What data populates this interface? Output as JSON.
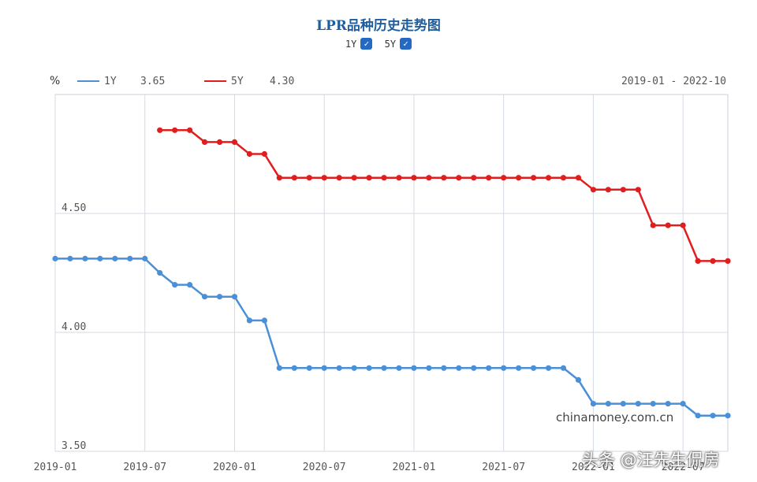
{
  "header": {
    "title": "LPR品种历史走势图",
    "toggle_1y": {
      "label": "1Y",
      "checked": true
    },
    "toggle_5y": {
      "label": "5Y",
      "checked": true
    }
  },
  "legend": {
    "unit": "%",
    "series": [
      {
        "name": "1Y",
        "value": "3.65",
        "color": "#4a90d9"
      },
      {
        "name": "5Y",
        "value": "4.30",
        "color": "#e01e1e"
      }
    ],
    "range": "2019-01 - 2022-10"
  },
  "source_text": "chinamoney.com.cn",
  "watermark": "头条 @汪先生侃房",
  "chart_data": {
    "type": "line",
    "x": [
      "2019-01",
      "2019-02",
      "2019-03",
      "2019-04",
      "2019-05",
      "2019-06",
      "2019-07",
      "2019-08",
      "2019-09",
      "2019-10",
      "2019-11",
      "2019-12",
      "2020-01",
      "2020-02",
      "2020-03",
      "2020-04",
      "2020-05",
      "2020-06",
      "2020-07",
      "2020-08",
      "2020-09",
      "2020-10",
      "2020-11",
      "2020-12",
      "2021-01",
      "2021-02",
      "2021-03",
      "2021-04",
      "2021-05",
      "2021-06",
      "2021-07",
      "2021-08",
      "2021-09",
      "2021-10",
      "2021-11",
      "2021-12",
      "2022-01",
      "2022-02",
      "2022-03",
      "2022-04",
      "2022-05",
      "2022-06",
      "2022-07",
      "2022-08",
      "2022-09",
      "2022-10"
    ],
    "x_ticks": [
      "2019-01",
      "2019-07",
      "2020-01",
      "2020-07",
      "2021-01",
      "2021-07",
      "2022-01",
      "2022-07"
    ],
    "y_ticks": [
      "3.50",
      "4.00",
      "4.50"
    ],
    "ylim": [
      3.5,
      5.0
    ],
    "series": [
      {
        "name": "1Y",
        "color": "#4a90d9",
        "values": [
          4.31,
          4.31,
          4.31,
          4.31,
          4.31,
          4.31,
          4.31,
          4.25,
          4.2,
          4.2,
          4.15,
          4.15,
          4.15,
          4.05,
          4.05,
          3.85,
          3.85,
          3.85,
          3.85,
          3.85,
          3.85,
          3.85,
          3.85,
          3.85,
          3.85,
          3.85,
          3.85,
          3.85,
          3.85,
          3.85,
          3.85,
          3.85,
          3.85,
          3.85,
          3.85,
          3.8,
          3.7,
          3.7,
          3.7,
          3.7,
          3.7,
          3.7,
          3.7,
          3.65,
          3.65,
          3.65
        ]
      },
      {
        "name": "5Y",
        "color": "#e01e1e",
        "values": [
          null,
          null,
          null,
          null,
          null,
          null,
          null,
          4.85,
          4.85,
          4.85,
          4.8,
          4.8,
          4.8,
          4.75,
          4.75,
          4.65,
          4.65,
          4.65,
          4.65,
          4.65,
          4.65,
          4.65,
          4.65,
          4.65,
          4.65,
          4.65,
          4.65,
          4.65,
          4.65,
          4.65,
          4.65,
          4.65,
          4.65,
          4.65,
          4.65,
          4.65,
          4.6,
          4.6,
          4.6,
          4.6,
          4.45,
          4.45,
          4.45,
          4.3,
          4.3,
          4.3
        ]
      }
    ],
    "grid": true
  }
}
